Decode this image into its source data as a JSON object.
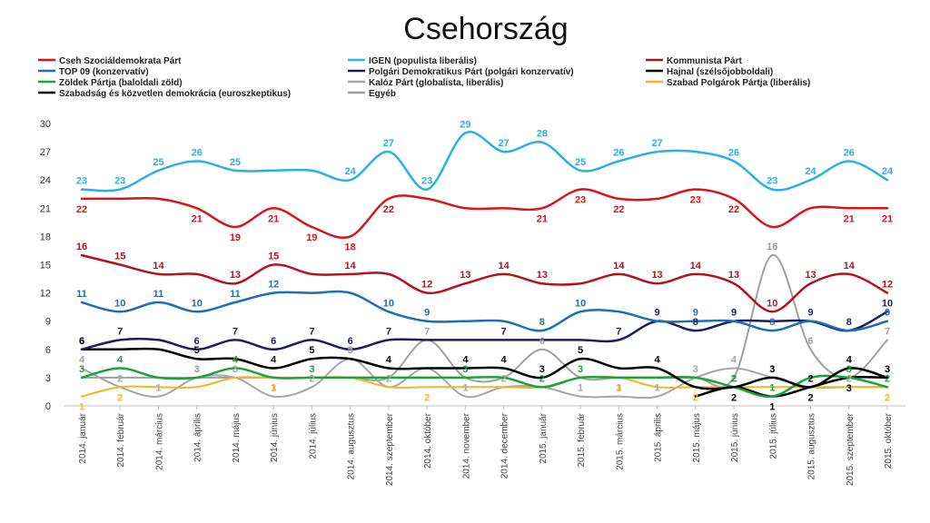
{
  "chart_data": {
    "type": "line",
    "title": "Csehország",
    "xlabel": "",
    "ylabel": "",
    "ylim": [
      0,
      30
    ],
    "yticks": [
      0,
      3,
      6,
      9,
      12,
      15,
      18,
      21,
      24,
      27,
      30
    ],
    "grid": false,
    "legend": "top",
    "categories": [
      "2014. január",
      "2014. február",
      "2014. március",
      "2014. április",
      "2014. május",
      "2014. június",
      "2014. július",
      "2014. augusztus",
      "2014. szeptember",
      "2014. október",
      "2014. november",
      "2014. december",
      "2015. január",
      "2015. február",
      "2015. március",
      "2015. április",
      "2015. május",
      "2015. június",
      "2015. július",
      "2015. augusztus",
      "2015. szeptember",
      "2015. október"
    ],
    "series": [
      {
        "name": "Cseh Szociáldemokrata Párt",
        "color": "#d9141b",
        "values": [
          22,
          22,
          22,
          21,
          19,
          21,
          19,
          18,
          22,
          22,
          21,
          21,
          21,
          23,
          22,
          22,
          23,
          22,
          19,
          21,
          21,
          21
        ],
        "labels": [
          "22",
          null,
          null,
          "21",
          "19",
          "21",
          "19",
          "18",
          "22",
          null,
          null,
          null,
          "21",
          "23",
          "22",
          null,
          "23",
          "22",
          null,
          null,
          "21",
          "21"
        ],
        "labelPos": "below"
      },
      {
        "name": "IGEN (populista liberális)",
        "color": "#2ab0e4",
        "values": [
          23,
          23,
          25,
          26,
          25,
          25,
          25,
          24,
          27,
          23,
          29,
          27,
          28,
          25,
          26,
          27,
          27,
          26,
          23,
          24,
          26,
          24
        ],
        "labels": [
          "23",
          "23",
          "25",
          "26",
          "25",
          null,
          null,
          "24",
          "27",
          "23",
          "29",
          "27",
          "28",
          "25",
          "26",
          "27",
          null,
          "26",
          "23",
          "24",
          "26",
          "24"
        ],
        "labelPos": "above"
      },
      {
        "name": "Kommunista Párt",
        "color": "#b5121b",
        "values": [
          16,
          15,
          14,
          14,
          13,
          15,
          14,
          14,
          14,
          12,
          13,
          14,
          13,
          13,
          14,
          13,
          14,
          13,
          10,
          13,
          14,
          12
        ],
        "labels": [
          "16",
          "15",
          "14",
          null,
          "13",
          "15",
          null,
          "14",
          null,
          "12",
          "13",
          "14",
          "13",
          null,
          "14",
          "13",
          "14",
          "13",
          "10",
          "13",
          "14",
          "12"
        ],
        "labelPos": "above"
      },
      {
        "name": "TOP 09 (konzervatív)",
        "color": "#1f6db5",
        "values": [
          11,
          10,
          11,
          10,
          11,
          12,
          12,
          12,
          10,
          9,
          9,
          9,
          8,
          10,
          10,
          9,
          9,
          9,
          8,
          9,
          8,
          9
        ],
        "labels": [
          "11",
          "10",
          "11",
          "10",
          "11",
          "12",
          null,
          null,
          "10",
          "9",
          null,
          null,
          "8",
          "10",
          null,
          null,
          "9",
          null,
          "8",
          null,
          null,
          "9"
        ],
        "labelPos": "above"
      },
      {
        "name": "Polgári Demokratikus Párt (polgári konzervatív)",
        "color": "#1b1f5e",
        "values": [
          6,
          7,
          7,
          6,
          7,
          6,
          7,
          6,
          7,
          7,
          7,
          7,
          7,
          7,
          7,
          9,
          8,
          9,
          9,
          9,
          8,
          10
        ],
        "labels": [
          "6",
          "7",
          null,
          "6",
          "7",
          "6",
          "7",
          "6",
          "7",
          null,
          null,
          "7",
          null,
          null,
          "7",
          "9",
          "8",
          "9",
          null,
          "9",
          "8",
          "10"
        ],
        "labelPos": "above"
      },
      {
        "name": "Hajnal (szélsőjobboldali)",
        "color": "#000000",
        "values": [
          6,
          6,
          6,
          5,
          5,
          4,
          5,
          5,
          4,
          4,
          4,
          4,
          3,
          5,
          4,
          4,
          2,
          2,
          3,
          2,
          4,
          3
        ],
        "labels": [
          "6",
          null,
          null,
          "5",
          null,
          "4",
          "5",
          "5",
          "4",
          null,
          "4",
          "4",
          "3",
          "5",
          null,
          "4",
          null,
          "2",
          "3",
          "2",
          "4",
          "3"
        ],
        "labelPos": "above"
      },
      {
        "name": "Zöldek Pártja (baloldali zöld)",
        "color": "#1aa33a",
        "values": [
          3,
          4,
          3,
          3,
          4,
          3,
          3,
          3,
          3,
          3,
          3,
          3,
          2,
          3,
          3,
          3,
          3,
          2,
          1,
          3,
          3,
          2
        ],
        "labels": [
          "3",
          "4",
          null,
          "3",
          "4",
          null,
          "3",
          null,
          null,
          null,
          "3",
          null,
          "2",
          "3",
          null,
          null,
          null,
          "2",
          "1",
          null,
          "3",
          "2"
        ],
        "labelPos": "above"
      },
      {
        "name": "Kalóz Párt (globalista, liberális)",
        "color": "#a6a6a6",
        "values": [
          4,
          2,
          1,
          3,
          3,
          1,
          2,
          5,
          2,
          4,
          1,
          2,
          2,
          1,
          1,
          1,
          3,
          4,
          3,
          2,
          2,
          2
        ],
        "labels": [
          "4",
          "2",
          "1",
          "3",
          "3",
          "1",
          "2",
          "5",
          "2",
          null,
          "1",
          "2",
          null,
          "1",
          "1",
          "1",
          "3",
          "4",
          null,
          null,
          "2",
          null
        ],
        "labelPos": "above"
      },
      {
        "name": "Szabad Polgárok Pártja (liberális)",
        "color": "#f2b722",
        "values": [
          1,
          2,
          2,
          2,
          3,
          3,
          3,
          3,
          2,
          2,
          2,
          2,
          2,
          3,
          3,
          2,
          2,
          2,
          2,
          2,
          2,
          2
        ],
        "labels": [
          "1",
          "2",
          null,
          null,
          null,
          "3",
          null,
          null,
          null,
          "2",
          null,
          null,
          null,
          null,
          "3",
          null,
          "2",
          null,
          null,
          null,
          null,
          "2"
        ],
        "labelPos": "below"
      },
      {
        "name": "Szabadság és közvetlen demokrácia (euroszkeptikus)",
        "color": "#000000",
        "values": [
          null,
          null,
          null,
          null,
          null,
          null,
          null,
          null,
          null,
          null,
          null,
          null,
          null,
          null,
          null,
          null,
          1,
          2,
          1,
          2,
          3,
          3
        ],
        "labels": [
          null,
          null,
          null,
          null,
          null,
          null,
          null,
          null,
          null,
          null,
          null,
          null,
          null,
          null,
          null,
          null,
          null,
          "2",
          "1",
          "2",
          "3",
          null
        ],
        "labelPos": "below"
      },
      {
        "name": "Egyéb",
        "color": "#a0a0a0",
        "values": [
          3,
          3,
          3,
          3,
          3,
          3,
          3,
          3,
          3,
          7,
          3,
          3,
          6,
          3,
          3,
          3,
          3,
          3,
          16,
          6,
          3,
          7
        ],
        "labels": [
          null,
          null,
          null,
          null,
          null,
          null,
          null,
          null,
          null,
          "7",
          null,
          null,
          "6",
          null,
          null,
          null,
          null,
          null,
          "16",
          "6",
          null,
          "7"
        ],
        "labelPos": "above"
      }
    ]
  }
}
